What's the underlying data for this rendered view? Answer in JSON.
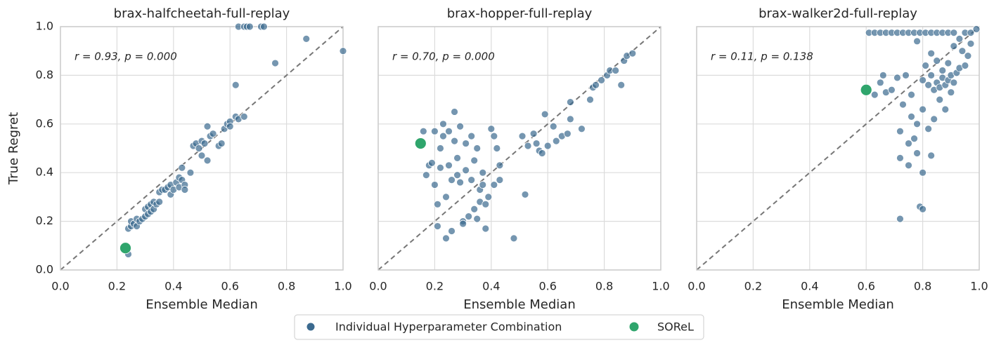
{
  "legend": {
    "items": [
      {
        "name": "Individual Hyperparameter Combination",
        "color": "#3b6a8f"
      },
      {
        "name": "SOReL",
        "color": "#2fa56c"
      }
    ]
  },
  "chart_data": [
    {
      "type": "scatter",
      "title": "brax-halfcheetah-full-replay",
      "x_label": "Ensemble Median",
      "y_label": "True Regret",
      "annotation": "r = 0.93, p = 0.000",
      "grid": true,
      "xlim": [
        0,
        1
      ],
      "ylim": [
        0,
        1
      ],
      "xticks": [
        {
          "value": 0,
          "label": "0.0"
        },
        {
          "value": 0.2,
          "label": "0.2"
        },
        {
          "value": 0.4,
          "label": "0.4"
        },
        {
          "value": 0.6,
          "label": "0.6"
        },
        {
          "value": 0.8,
          "label": "0.8"
        },
        {
          "value": 1,
          "label": "1.0"
        }
      ],
      "yticks": [
        {
          "value": 0,
          "label": "0.0"
        },
        {
          "value": 0.2,
          "label": "0.2"
        },
        {
          "value": 0.4,
          "label": "0.4"
        },
        {
          "value": 0.6,
          "label": "0.6"
        },
        {
          "value": 0.8,
          "label": "0.8"
        },
        {
          "value": 1,
          "label": "1.0"
        }
      ],
      "series": [
        {
          "color": "#3b6a8f",
          "x": [
            0.24,
            0.24,
            0.25,
            0.25,
            0.26,
            0.27,
            0.27,
            0.28,
            0.29,
            0.3,
            0.3,
            0.31,
            0.31,
            0.32,
            0.32,
            0.33,
            0.33,
            0.34,
            0.35,
            0.35,
            0.36,
            0.37,
            0.38,
            0.39,
            0.39,
            0.4,
            0.41,
            0.42,
            0.42,
            0.43,
            0.43,
            0.44,
            0.44,
            0.46,
            0.47,
            0.48,
            0.49,
            0.5,
            0.5,
            0.51,
            0.52,
            0.52,
            0.53,
            0.54,
            0.56,
            0.57,
            0.58,
            0.59,
            0.6,
            0.6,
            0.62,
            0.63,
            0.65,
            0.62,
            0.63,
            0.65,
            0.66,
            0.67,
            0.71,
            0.72,
            0.76,
            0.87,
            1.0
          ],
          "values": [
            0.065,
            0.17,
            0.18,
            0.2,
            0.19,
            0.18,
            0.21,
            0.2,
            0.21,
            0.22,
            0.25,
            0.23,
            0.26,
            0.24,
            0.27,
            0.25,
            0.28,
            0.27,
            0.28,
            0.32,
            0.33,
            0.33,
            0.34,
            0.31,
            0.35,
            0.33,
            0.36,
            0.34,
            0.38,
            0.42,
            0.37,
            0.35,
            0.33,
            0.4,
            0.51,
            0.52,
            0.5,
            0.47,
            0.53,
            0.52,
            0.59,
            0.45,
            0.55,
            0.56,
            0.51,
            0.52,
            0.58,
            0.6,
            0.61,
            0.59,
            0.63,
            0.62,
            0.63,
            0.76,
            1.0,
            1.0,
            1.0,
            1.0,
            1.0,
            1.0,
            0.85,
            0.95,
            0.9
          ]
        },
        {
          "color": "#2fa56c",
          "x": [
            0.23
          ],
          "values": [
            0.09
          ]
        }
      ]
    },
    {
      "type": "scatter",
      "title": "brax-hopper-full-replay",
      "x_label": "Ensemble Median",
      "annotation": "r = 0.70, p = 0.000",
      "grid": true,
      "xlim": [
        0,
        1
      ],
      "ylim": [
        0,
        1
      ],
      "xticks": [
        {
          "value": 0,
          "label": "0.0"
        },
        {
          "value": 0.2,
          "label": "0.2"
        },
        {
          "value": 0.4,
          "label": "0.4"
        },
        {
          "value": 0.6,
          "label": "0.6"
        },
        {
          "value": 0.8,
          "label": "0.8"
        },
        {
          "value": 1,
          "label": "1.0"
        }
      ],
      "yticks": [
        0,
        0.2,
        0.4,
        0.6,
        0.8,
        1
      ],
      "series": [
        {
          "color": "#3b6a8f",
          "x": [
            0.16,
            0.17,
            0.18,
            0.19,
            0.2,
            0.2,
            0.21,
            0.21,
            0.22,
            0.22,
            0.23,
            0.23,
            0.24,
            0.24,
            0.25,
            0.25,
            0.26,
            0.26,
            0.27,
            0.27,
            0.28,
            0.28,
            0.29,
            0.29,
            0.3,
            0.3,
            0.31,
            0.31,
            0.32,
            0.33,
            0.33,
            0.34,
            0.34,
            0.35,
            0.35,
            0.36,
            0.36,
            0.37,
            0.37,
            0.38,
            0.38,
            0.39,
            0.4,
            0.41,
            0.41,
            0.42,
            0.43,
            0.43,
            0.48,
            0.51,
            0.52,
            0.53,
            0.55,
            0.56,
            0.57,
            0.58,
            0.59,
            0.6,
            0.62,
            0.63,
            0.65,
            0.67,
            0.68,
            0.68,
            0.72,
            0.75,
            0.76,
            0.77,
            0.79,
            0.81,
            0.82,
            0.84,
            0.86,
            0.87,
            0.88,
            0.9
          ],
          "values": [
            0.57,
            0.39,
            0.43,
            0.44,
            0.35,
            0.57,
            0.27,
            0.18,
            0.42,
            0.5,
            0.55,
            0.6,
            0.13,
            0.3,
            0.57,
            0.43,
            0.16,
            0.37,
            0.65,
            0.53,
            0.46,
            0.39,
            0.36,
            0.59,
            0.2,
            0.19,
            0.41,
            0.52,
            0.22,
            0.55,
            0.37,
            0.25,
            0.45,
            0.5,
            0.21,
            0.33,
            0.28,
            0.4,
            0.35,
            0.27,
            0.17,
            0.3,
            0.58,
            0.55,
            0.35,
            0.5,
            0.37,
            0.43,
            0.13,
            0.55,
            0.31,
            0.51,
            0.56,
            0.52,
            0.49,
            0.48,
            0.64,
            0.51,
            0.59,
            0.53,
            0.55,
            0.56,
            0.62,
            0.69,
            0.58,
            0.7,
            0.75,
            0.76,
            0.78,
            0.8,
            0.82,
            0.82,
            0.76,
            0.86,
            0.88,
            0.89
          ]
        },
        {
          "color": "#2fa56c",
          "x": [
            0.15
          ],
          "values": [
            0.52
          ]
        }
      ]
    },
    {
      "type": "scatter",
      "title": "brax-walker2d-full-replay",
      "x_label": "Ensemble Median",
      "annotation": "r = 0.11, p = 0.138",
      "grid": true,
      "xlim": [
        0,
        1
      ],
      "ylim": [
        0,
        1
      ],
      "xticks": [
        {
          "value": 0,
          "label": "0.0"
        },
        {
          "value": 0.2,
          "label": "0.2"
        },
        {
          "value": 0.4,
          "label": "0.4"
        },
        {
          "value": 0.6,
          "label": "0.6"
        },
        {
          "value": 0.8,
          "label": "0.8"
        },
        {
          "value": 1,
          "label": "1.0"
        }
      ],
      "yticks": [
        0,
        0.2,
        0.4,
        0.6,
        0.8,
        1
      ],
      "series": [
        {
          "color": "#3b6a8f",
          "x": [
            0.61,
            0.63,
            0.65,
            0.67,
            0.69,
            0.71,
            0.73,
            0.75,
            0.77,
            0.79,
            0.81,
            0.83,
            0.85,
            0.87,
            0.89,
            0.91,
            0.95,
            0.97,
            0.63,
            0.65,
            0.66,
            0.67,
            0.69,
            0.71,
            0.72,
            0.72,
            0.72,
            0.73,
            0.74,
            0.75,
            0.75,
            0.76,
            0.76,
            0.77,
            0.78,
            0.78,
            0.79,
            0.8,
            0.8,
            0.8,
            0.8,
            0.81,
            0.82,
            0.82,
            0.83,
            0.83,
            0.84,
            0.84,
            0.85,
            0.85,
            0.86,
            0.86,
            0.87,
            0.87,
            0.88,
            0.88,
            0.89,
            0.89,
            0.9,
            0.9,
            0.91,
            0.91,
            0.92,
            0.93,
            0.93,
            0.94,
            0.95,
            0.96,
            0.97,
            0.99,
            0.78,
            0.83
          ],
          "values": [
            0.975,
            0.975,
            0.975,
            0.975,
            0.975,
            0.975,
            0.975,
            0.975,
            0.975,
            0.975,
            0.975,
            0.975,
            0.975,
            0.975,
            0.975,
            0.975,
            0.975,
            0.975,
            0.72,
            0.77,
            0.8,
            0.73,
            0.74,
            0.79,
            0.57,
            0.46,
            0.21,
            0.68,
            0.8,
            0.43,
            0.52,
            0.63,
            0.72,
            0.54,
            0.6,
            0.48,
            0.26,
            0.25,
            0.4,
            0.78,
            0.66,
            0.84,
            0.58,
            0.76,
            0.47,
            0.8,
            0.74,
            0.62,
            0.77,
            0.86,
            0.75,
            0.7,
            0.79,
            0.82,
            0.76,
            0.66,
            0.78,
            0.85,
            0.8,
            0.73,
            0.77,
            0.92,
            0.81,
            0.83,
            0.95,
            0.9,
            0.84,
            0.88,
            0.93,
            0.99,
            0.94,
            0.89
          ]
        },
        {
          "color": "#2fa56c",
          "x": [
            0.6
          ],
          "values": [
            0.74
          ]
        }
      ]
    }
  ]
}
